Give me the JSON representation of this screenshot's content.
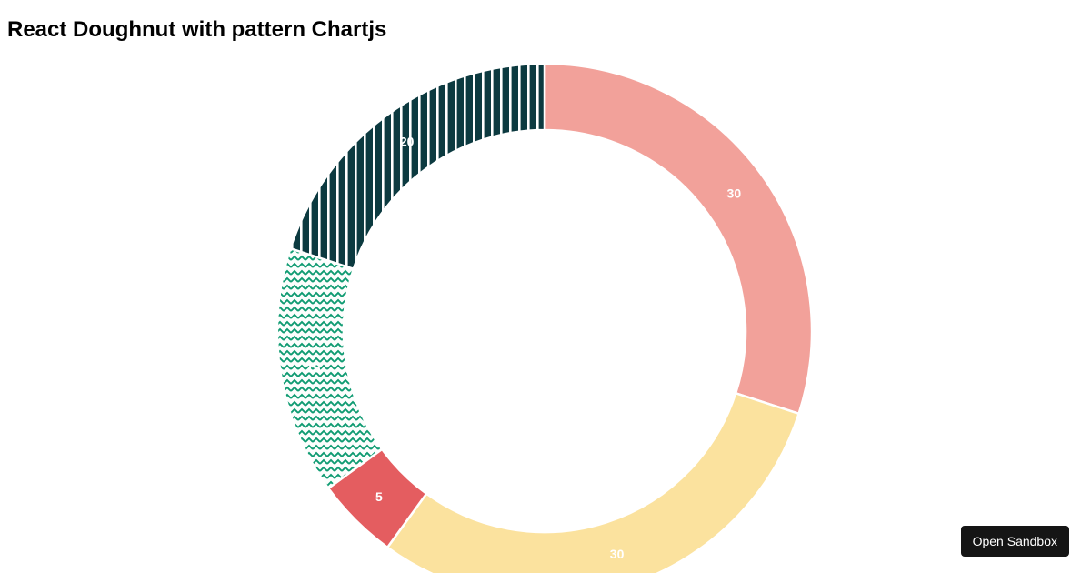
{
  "page": {
    "background": "#ffffff"
  },
  "sandbox_button": {
    "label": "Open Sandbox",
    "background": "#151515",
    "text_color": "#ffffff"
  },
  "chart_data": {
    "type": "doughnut",
    "title": "React Doughnut with pattern Chartjs",
    "legend": "none",
    "direction": "clockwise",
    "start_angle_deg": 0,
    "cutout_ratio": 0.75,
    "border_color": "#ffffff",
    "data_label_color": "#ffffff",
    "values": [
      30,
      30,
      5,
      15,
      20
    ],
    "data_labels": [
      "30",
      "30",
      "5",
      "15",
      "20"
    ],
    "segments": [
      {
        "value": 30,
        "fill_style": "solid",
        "color": "#f2a19a"
      },
      {
        "value": 30,
        "fill_style": "solid",
        "color": "#fbe29e"
      },
      {
        "value": 5,
        "fill_style": "solid",
        "color": "#e45d60"
      },
      {
        "value": 15,
        "fill_style": "pattern-zigzag",
        "color": "#0f9b72",
        "pattern_bg": "#fcfefd"
      },
      {
        "value": 20,
        "fill_style": "pattern-line-vertical",
        "color": "#0c3a40",
        "pattern_line": "#ffffff"
      }
    ]
  }
}
